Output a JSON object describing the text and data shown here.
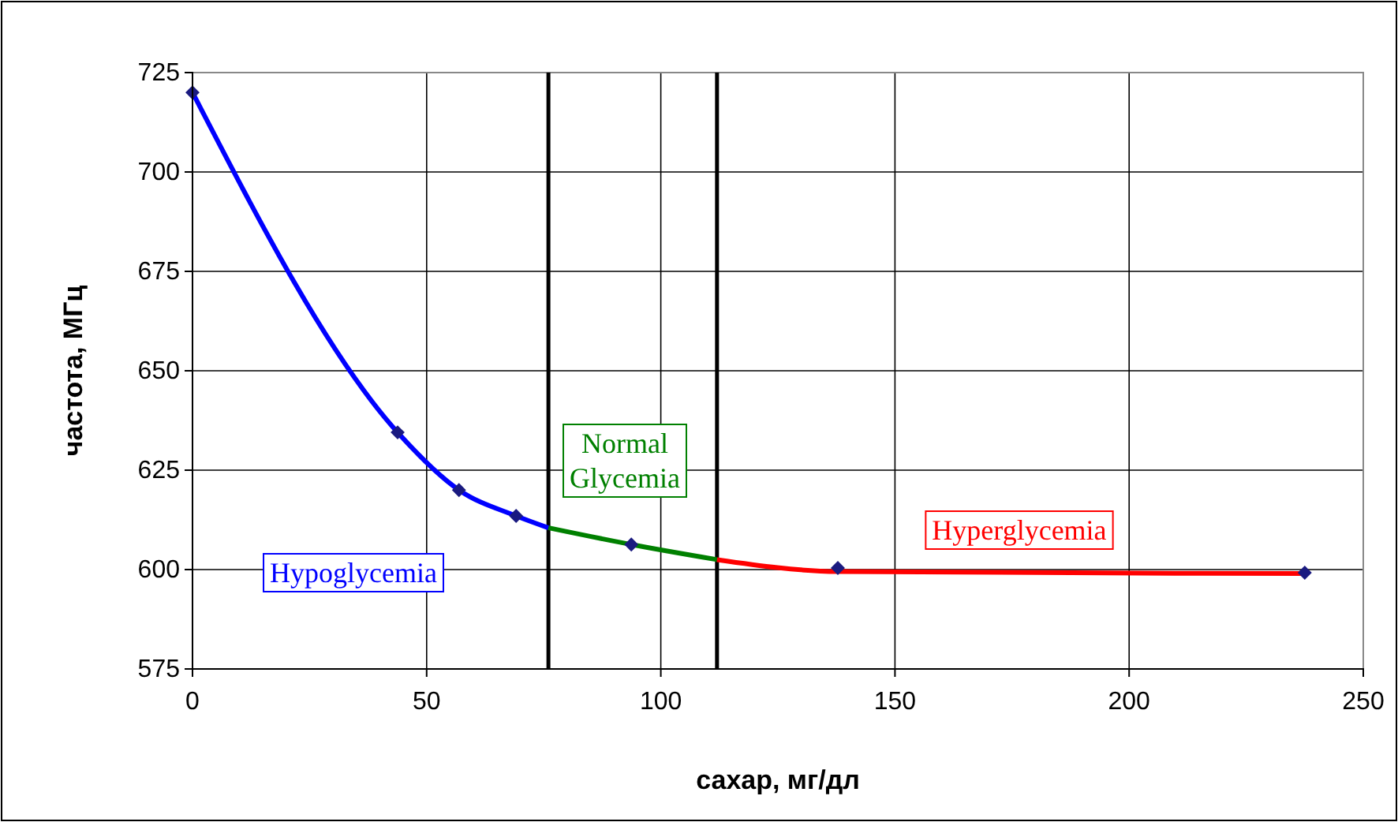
{
  "chart_data": {
    "type": "line",
    "xlabel": "сахар, мг/дл",
    "ylabel": "частота, МГц",
    "xlim": [
      0,
      250
    ],
    "xticks": [
      0,
      50,
      100,
      150,
      200,
      250
    ],
    "ylim": [
      575,
      725
    ],
    "yticks": [
      575,
      600,
      625,
      650,
      675,
      700,
      725
    ],
    "grid": true,
    "ref_lines": [
      {
        "axis": "x",
        "value": 76,
        "color": "#000000"
      },
      {
        "axis": "x",
        "value": 112,
        "color": "#000000"
      }
    ],
    "series": [
      {
        "name": "Hypoglycemia",
        "color": "#0000ff",
        "marker": "none",
        "x": [
          0,
          43.8,
          56.9,
          69.1,
          76
        ],
        "values": [
          720,
          634.5,
          620,
          613.5,
          610.5
        ]
      },
      {
        "name": "Normal Glycemia",
        "color": "#008000",
        "marker": "none",
        "x": [
          76,
          93.7,
          112
        ],
        "values": [
          610.5,
          606.3,
          602.5
        ]
      },
      {
        "name": "Hyperglycemia",
        "color": "#ff0000",
        "marker": "none",
        "x": [
          112,
          137.8,
          237.5
        ],
        "values": [
          602.5,
          599.5,
          599
        ]
      },
      {
        "type": "scatter",
        "color": "#1a1a80",
        "marker": "diamond",
        "x": [
          0,
          43.8,
          56.9,
          69.1,
          93.7,
          137.8,
          237.5
        ],
        "values": [
          720,
          634.5,
          620,
          613.5,
          606.3,
          600.4,
          599.2
        ]
      }
    ]
  }
}
